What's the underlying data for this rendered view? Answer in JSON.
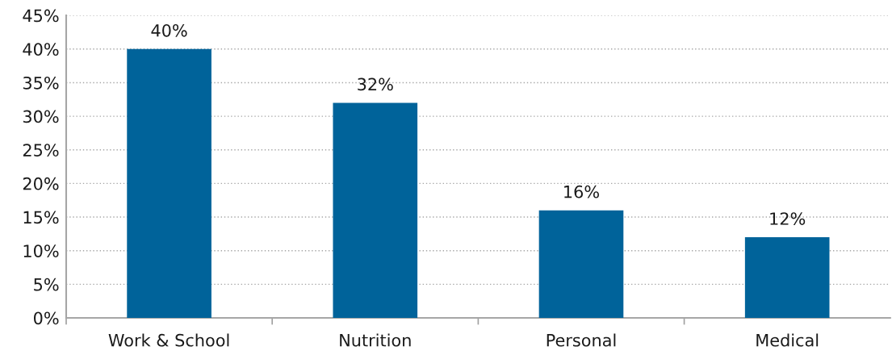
{
  "chart_data": {
    "type": "bar",
    "categories": [
      "Work & School",
      "Nutrition",
      "Personal",
      "Medical"
    ],
    "values": [
      40,
      32,
      16,
      12
    ],
    "color": "#00639a",
    "value_labels": [
      "40%",
      "32%",
      "16%",
      "12%"
    ],
    "ylim": [
      0,
      45
    ],
    "yticks": [
      {
        "value": 0,
        "label": "0%"
      },
      {
        "value": 5,
        "label": "5%"
      },
      {
        "value": 10,
        "label": "10%"
      },
      {
        "value": 15,
        "label": "15%"
      },
      {
        "value": 20,
        "label": "20%"
      },
      {
        "value": 25,
        "label": "25%"
      },
      {
        "value": 30,
        "label": "30%"
      },
      {
        "value": 35,
        "label": "35%"
      },
      {
        "value": 40,
        "label": "40%"
      },
      {
        "value": 45,
        "label": "45%"
      }
    ],
    "grid": "y"
  }
}
